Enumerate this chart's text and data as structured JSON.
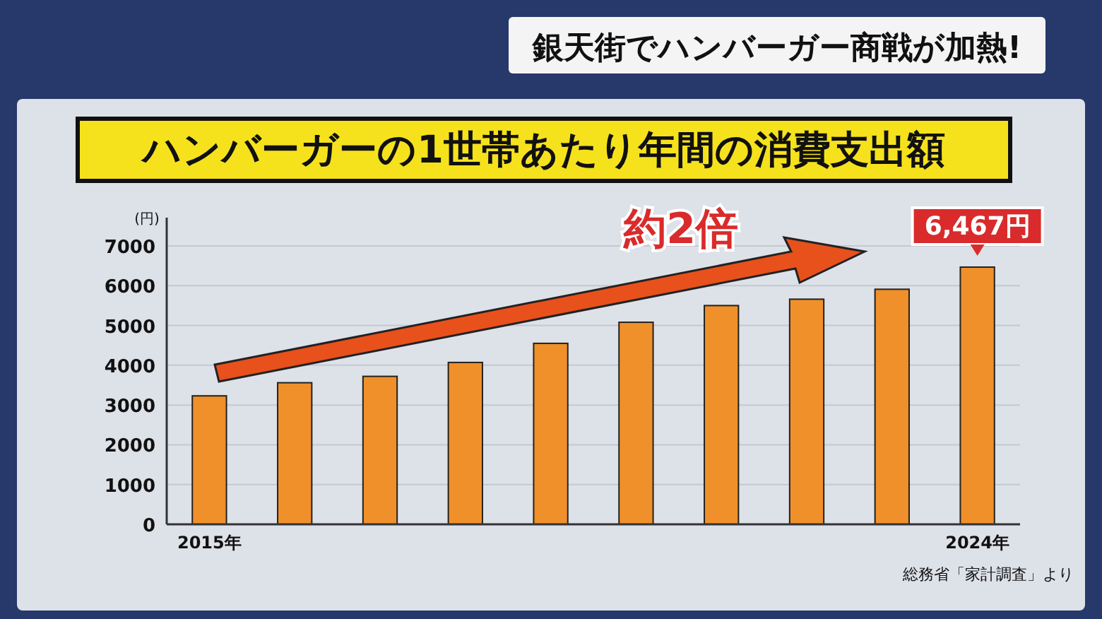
{
  "chart_data": {
    "type": "bar",
    "subtitle": "銀天街でハンバーガー商戦が加熱!",
    "title": "ハンバーガーの1世帯あたり年間の消費支出額",
    "ylabel": "(円)",
    "categories": [
      "2015年",
      null,
      null,
      null,
      null,
      null,
      null,
      null,
      null,
      "2024年"
    ],
    "values": [
      3230,
      3560,
      3720,
      4070,
      4550,
      5080,
      5500,
      5660,
      5910,
      6467
    ],
    "value_labels": [
      null,
      null,
      null,
      null,
      null,
      null,
      null,
      null,
      null,
      "6,467円"
    ],
    "color": "#f0902a",
    "ylim": [
      0,
      7000
    ],
    "yticks": [
      0,
      1000,
      2000,
      3000,
      4000,
      5000,
      6000,
      7000
    ],
    "grid": "y",
    "annotations": [
      "約2倍",
      "総務省「家計調査」より"
    ]
  }
}
